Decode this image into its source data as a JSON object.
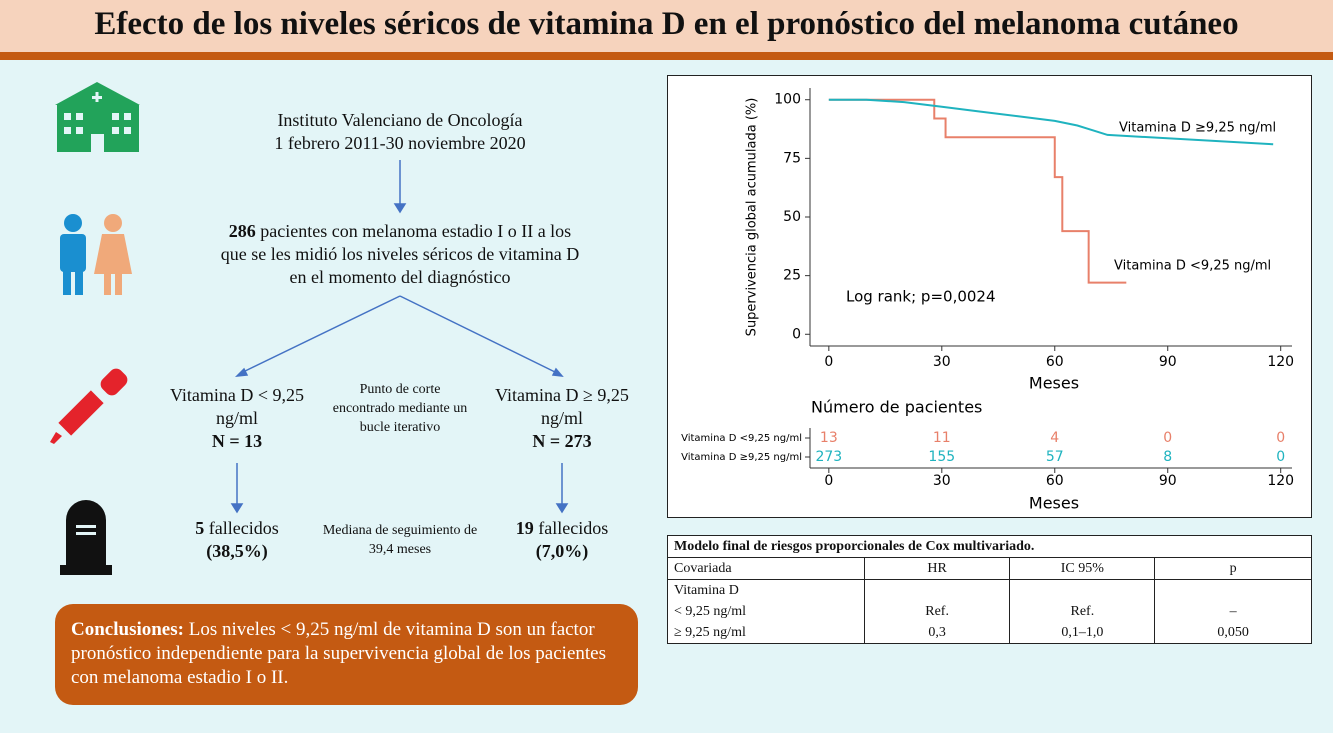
{
  "header": {
    "title": "Efecto de los niveles séricos de vitamina D en el pronóstico del melanoma cutáneo"
  },
  "flow": {
    "source": [
      "Instituto Valenciano de Oncología",
      "1 febrero 2011-30 noviembre 2020"
    ],
    "cohort": {
      "count": "286",
      "text": "pacientes con melanoma estadio I o II a los que se les midió los niveles séricos de vitamina D en el momento del diagnóstico"
    },
    "left_group": {
      "label": "Vitamina D < 9,25 ng/ml",
      "n": "N = 13",
      "deaths": "5",
      "deaths_text": "fallecidos",
      "percent": "(38,5%)"
    },
    "right_group": {
      "label": "Vitamina D ≥ 9,25 ng/ml",
      "n": "N = 273",
      "deaths": "19",
      "deaths_text": "fallecidos",
      "percent": "(7,0%)"
    },
    "cutoff_note": "Punto de corte encontrado mediante un bucle iterativo",
    "followup_note": "Mediana de seguimiento de 39,4 meses"
  },
  "conclusion": {
    "label": "Conclusiones:",
    "text": "Los niveles < 9,25 ng/ml de vitamina D son un factor pronóstico independiente para la supervivencia global de los pacientes con melanoma estadio I o II."
  },
  "chart_data": {
    "type": "line",
    "step": true,
    "ylabel": "Supervivencia global acumulada (%)",
    "xlabel": "Meses",
    "xlim": [
      -5,
      123
    ],
    "ylim": [
      -5,
      105
    ],
    "xticks": [
      0,
      30,
      60,
      90,
      120
    ],
    "yticks": [
      0,
      25,
      50,
      75,
      100
    ],
    "annotation": "Log rank; p=0,0024",
    "series": [
      {
        "name": "Vitamina D <9,25 ng/ml",
        "color": "#e8806a",
        "x": [
          0,
          28,
          28,
          31,
          31,
          60,
          60,
          62,
          62,
          69,
          69,
          79
        ],
        "values": [
          100,
          100,
          92,
          92,
          84,
          84,
          67,
          67,
          44,
          44,
          22,
          22
        ]
      },
      {
        "name": "Vitamina D ≥9,25 ng/ml",
        "color": "#1fb3bf",
        "x": [
          0,
          10,
          20,
          30,
          40,
          50,
          60,
          66,
          70,
          74,
          118
        ],
        "values": [
          100,
          100,
          99,
          97,
          95,
          93,
          91,
          89,
          87,
          85,
          81
        ]
      }
    ],
    "risk_table": {
      "title": "Número de pacientes",
      "xticks": [
        0,
        30,
        60,
        90,
        120
      ],
      "xlabel": "Meses",
      "rows": [
        {
          "name": "Vitamina D <9,25 ng/ml",
          "color": "#e8806a",
          "values": [
            13,
            11,
            4,
            0,
            0
          ]
        },
        {
          "name": "Vitamina D ≥9,25 ng/ml",
          "color": "#1fb3bf",
          "values": [
            273,
            155,
            57,
            8,
            0
          ]
        }
      ]
    }
  },
  "cox_table": {
    "title": "Modelo final de riesgos proporcionales de Cox multivariado.",
    "header": [
      "Covariada",
      "HR",
      "IC 95%",
      "p"
    ],
    "group": "Vitamina D",
    "rows": [
      [
        "< 9,25 ng/ml",
        "Ref.",
        "Ref.",
        "–"
      ],
      [
        "≥ 9,25 ng/ml",
        "0,3",
        "0,1–1,0",
        "0,050"
      ]
    ]
  }
}
